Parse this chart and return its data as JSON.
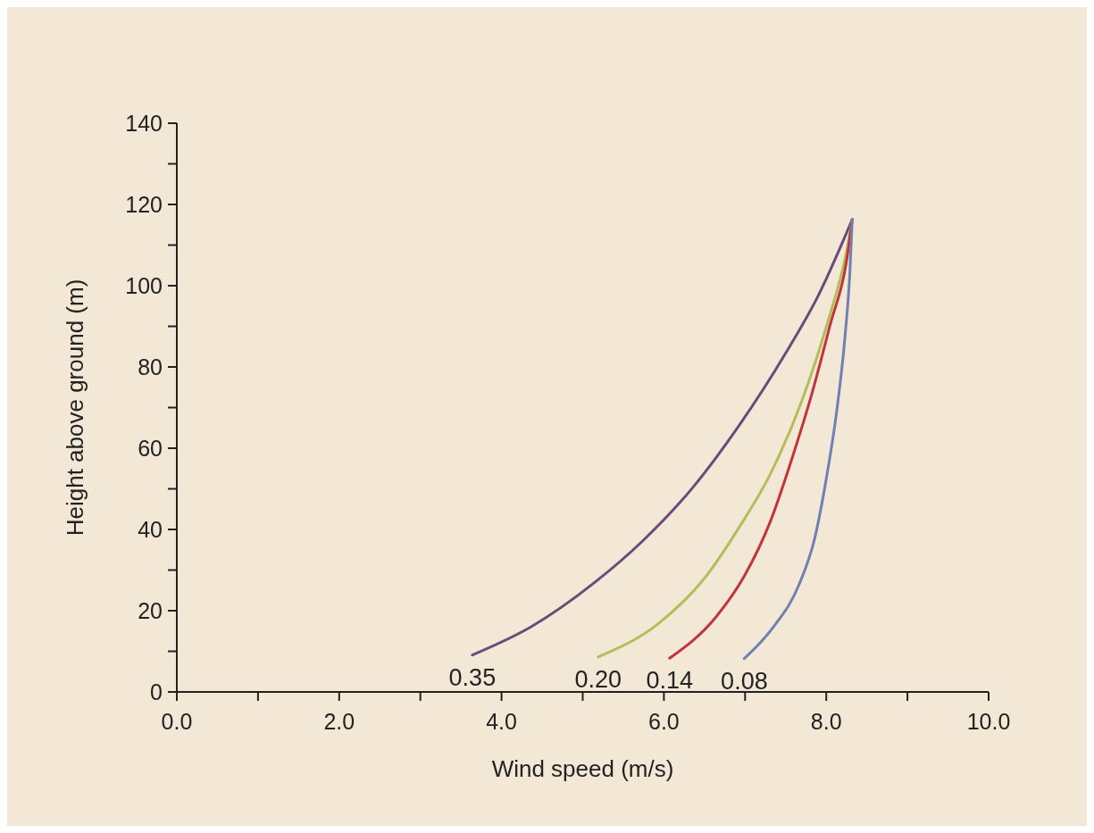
{
  "chart_data": {
    "type": "line",
    "xlabel": "Wind speed (m/s)",
    "ylabel": "Height above ground (m)",
    "xlim": [
      0,
      10
    ],
    "ylim": [
      0,
      140
    ],
    "xticks": [
      {
        "value": 0,
        "label": "0.0"
      },
      {
        "value": 1,
        "label": null
      },
      {
        "value": 2,
        "label": "2.0"
      },
      {
        "value": 3,
        "label": null
      },
      {
        "value": 4,
        "label": "4.0"
      },
      {
        "value": 5,
        "label": null
      },
      {
        "value": 6,
        "label": "6.0"
      },
      {
        "value": 7,
        "label": null
      },
      {
        "value": 8,
        "label": "8.0"
      },
      {
        "value": 9,
        "label": null
      },
      {
        "value": 10,
        "label": "10.0"
      }
    ],
    "yticks": [
      0,
      {
        "value": 10,
        "label": null
      },
      20,
      {
        "value": 30,
        "label": null
      },
      40,
      {
        "value": 50,
        "label": null
      },
      60,
      {
        "value": 70,
        "label": null
      },
      80,
      {
        "value": 90,
        "label": null
      },
      100,
      {
        "value": 110,
        "label": null
      },
      120,
      {
        "value": 130,
        "label": null
      },
      140
    ],
    "grid": false,
    "marker": "none",
    "line_style": "solid",
    "series": [
      {
        "name": "0.35",
        "color": "#6b4a7a",
        "x": [
          3.64,
          4.36,
          5.15,
          5.74,
          6.33,
          6.92,
          7.5,
          7.9,
          8.32
        ],
        "values": [
          9.1,
          16,
          27,
          37.2,
          49.7,
          65.4,
          83.4,
          97.5,
          116.3
        ]
      },
      {
        "name": "0.20",
        "color": "#b5bd5a",
        "x": [
          5.19,
          5.93,
          6.52,
          6.92,
          7.31,
          7.7,
          8.01,
          8.25,
          8.32
        ],
        "values": [
          8.6,
          16.8,
          28.5,
          40.3,
          53.6,
          71.7,
          90.5,
          108.5,
          116.3
        ]
      },
      {
        "name": "0.14",
        "color": "#c0353a",
        "x": [
          6.07,
          6.64,
          6.99,
          7.31,
          7.58,
          7.82,
          8.05,
          8.25,
          8.32
        ],
        "values": [
          8.3,
          18.4,
          28.5,
          41.9,
          57.6,
          73.2,
          90.5,
          106.1,
          116.3
        ]
      },
      {
        "name": "0.08",
        "color": "#7080b0",
        "x": [
          6.99,
          7.35,
          7.66,
          7.86,
          8.01,
          8.13,
          8.23,
          8.29,
          8.32
        ],
        "values": [
          8.2,
          16,
          26.2,
          38,
          53.6,
          69.3,
          87.3,
          103,
          116.3
        ]
      }
    ]
  }
}
